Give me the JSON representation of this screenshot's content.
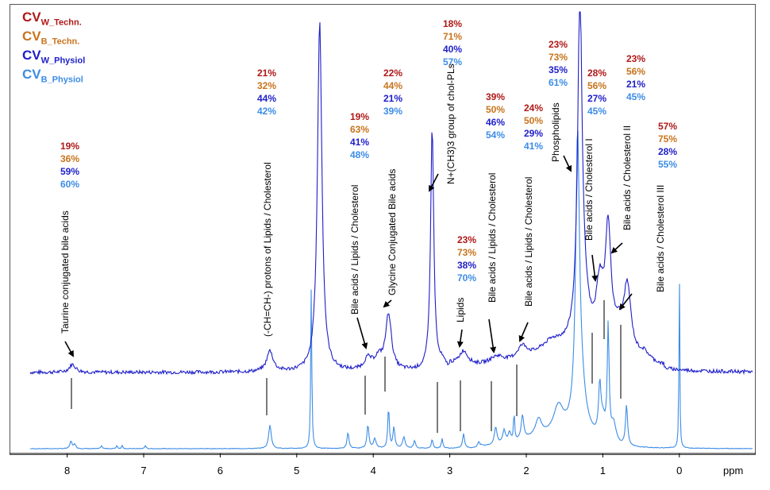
{
  "colors": {
    "cv_w_techn": "#b01818",
    "cv_b_techn": "#c8741c",
    "cv_w_physiol": "#1e1ec8",
    "cv_b_physiol": "#3c8ce6",
    "upper_spectrum": "#1e1ec8",
    "lower_spectrum": "#3c8ce6"
  },
  "legend": [
    {
      "main": "CV",
      "sub": "W_Techn.",
      "color_key": "cv_w_techn"
    },
    {
      "main": "CV",
      "sub": "B_Techn.",
      "color_key": "cv_b_techn"
    },
    {
      "main": "CV",
      "sub": "W_Physiol",
      "color_key": "cv_w_physiol"
    },
    {
      "main": "CV",
      "sub": "B_Physiol",
      "color_key": "cv_b_physiol"
    }
  ],
  "chart_data": {
    "type": "line",
    "xlabel": "ppm",
    "x_reversed": true,
    "xlim": [
      8.5,
      -0.85
    ],
    "x_ticks": [
      "8",
      "7",
      "6",
      "5",
      "4",
      "3",
      "2",
      "1",
      "0"
    ],
    "x_tick_values": [
      8,
      7,
      6,
      5,
      4,
      3,
      2,
      1,
      0
    ],
    "series_style": "two stacked NMR spectra, upper dark blue, lower light blue",
    "annotations": [
      {
        "label": "Taurine conjugated bile acids",
        "ppm": 7.93,
        "cv": [
          "19%",
          "36%",
          "59%",
          "60%"
        ]
      },
      {
        "label": "(-CH=CH-) protons of Lipids / Cholesterol",
        "ppm": 5.35,
        "cv": [
          "21%",
          "32%",
          "44%",
          "42%"
        ]
      },
      {
        "label": "Bile acids / Lipids / Cholesterol",
        "ppm": 4.07,
        "cv": [
          "19%",
          "63%",
          "41%",
          "48%"
        ]
      },
      {
        "label": "Glycine Conjugated Bile acids",
        "ppm": 3.78,
        "cv": [
          "22%",
          "44%",
          "21%",
          "39%"
        ]
      },
      {
        "label": "N+(CH3)3 group of chol-PLs",
        "ppm": 3.23,
        "cv": [
          "18%",
          "71%",
          "40%",
          "57%"
        ]
      },
      {
        "label": "Lipids",
        "ppm": 2.82,
        "cv": [
          "23%",
          "73%",
          "38%",
          "70%"
        ]
      },
      {
        "label": "Bile acids / Lipids / Cholesterol",
        "ppm": 2.38,
        "cv": [
          "39%",
          "50%",
          "46%",
          "54%"
        ]
      },
      {
        "label": "Bile acids / Lipids / Cholesterol",
        "ppm": 2.05,
        "cv": [
          "24%",
          "50%",
          "29%",
          "41%"
        ]
      },
      {
        "label": "Phospholipids",
        "ppm": 1.3,
        "cv": [
          "23%",
          "73%",
          "35%",
          "61%"
        ]
      },
      {
        "label": "Bile acids / Cholesterol I",
        "ppm": 1.04,
        "cv": [
          "28%",
          "56%",
          "27%",
          "45%"
        ]
      },
      {
        "label": "Bile acids / Cholesterol II",
        "ppm": 0.93,
        "cv": [
          "23%",
          "56%",
          "21%",
          "45%"
        ]
      },
      {
        "label": "Bile acids / Cholesterol III",
        "ppm": 0.68,
        "cv": [
          "57%",
          "75%",
          "28%",
          "55%"
        ]
      }
    ]
  }
}
